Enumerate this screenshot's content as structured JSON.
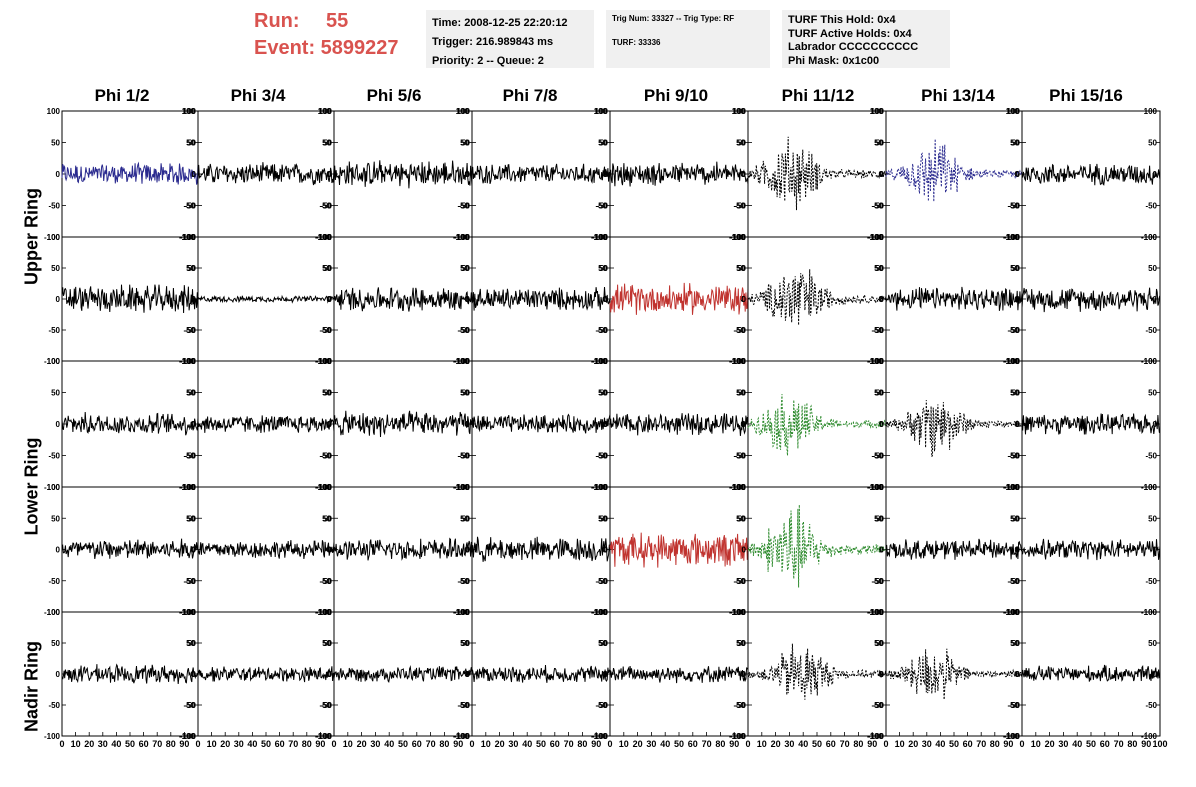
{
  "header": {
    "run_label": "Run:",
    "run_value": "55",
    "event_line": "Event: 5899227"
  },
  "info_time": {
    "time": "Time: 2008-12-25 22:20:12",
    "trigger": "Trigger: 216.989843 ms",
    "priority": "Priority: 2 -- Queue: 2"
  },
  "info_trig": {
    "trig": "Trig Num: 33327 -- Trig Type: RF",
    "turf": "TURF: 33336"
  },
  "info_turf": {
    "hold": "TURF This Hold: 0x4",
    "active": "TURF Active Holds: 0x4",
    "labrador": "Labrador CCCCCCCCCC",
    "phimask": "Phi Mask: 0x1c00"
  },
  "columns": [
    "Phi 1/2",
    "Phi 3/4",
    "Phi 5/6",
    "Phi 7/8",
    "Phi 9/10",
    "Phi 11/12",
    "Phi 13/14",
    "Phi 15/16"
  ],
  "row_groups": [
    "Upper Ring",
    "Lower Ring",
    "Nadir Ring"
  ],
  "colors": {
    "blue": "#2b2b8f",
    "red": "#c0332f",
    "green": "#2e8b2e",
    "black": "#000000"
  },
  "chart_data": {
    "type": "line",
    "xlim": [
      0,
      100
    ],
    "ylim": [
      -100,
      100
    ],
    "y_ticks": [
      100,
      50,
      0,
      -50,
      -100
    ],
    "y_tick_labels": [
      "100",
      "50",
      "0",
      "-50",
      "-100"
    ],
    "x_tick_labels": [
      "0",
      "10",
      "20",
      "30",
      "40",
      "50",
      "60",
      "70",
      "80",
      "90",
      "100"
    ],
    "panels": [
      [
        {
          "color": "blue",
          "dashed": false,
          "amp": 14,
          "envelope": "flat"
        },
        {
          "color": "black",
          "dashed": false,
          "amp": 14,
          "envelope": "flat"
        },
        {
          "color": "black",
          "dashed": false,
          "amp": 17,
          "envelope": "flat"
        },
        {
          "color": "black",
          "dashed": false,
          "amp": 13,
          "envelope": "flat"
        },
        {
          "color": "black",
          "dashed": false,
          "amp": 15,
          "envelope": "flat"
        },
        {
          "color": "black",
          "dashed": true,
          "amp": 45,
          "envelope": "burst"
        },
        {
          "color": "blue",
          "dashed": true,
          "amp": 40,
          "envelope": "burst"
        },
        {
          "color": "black",
          "dashed": false,
          "amp": 14,
          "envelope": "flat"
        }
      ],
      [
        {
          "color": "black",
          "dashed": false,
          "amp": 18,
          "envelope": "flat"
        },
        {
          "color": "black",
          "dashed": false,
          "amp": 4,
          "envelope": "flat"
        },
        {
          "color": "black",
          "dashed": false,
          "amp": 16,
          "envelope": "flat"
        },
        {
          "color": "black",
          "dashed": false,
          "amp": 15,
          "envelope": "flat"
        },
        {
          "color": "red",
          "dashed": false,
          "amp": 20,
          "envelope": "flat"
        },
        {
          "color": "black",
          "dashed": true,
          "amp": 48,
          "envelope": "burst"
        },
        {
          "color": "black",
          "dashed": false,
          "amp": 15,
          "envelope": "flat"
        },
        {
          "color": "black",
          "dashed": false,
          "amp": 16,
          "envelope": "flat"
        }
      ],
      [
        {
          "color": "black",
          "dashed": false,
          "amp": 14,
          "envelope": "flat"
        },
        {
          "color": "black",
          "dashed": false,
          "amp": 12,
          "envelope": "flat"
        },
        {
          "color": "black",
          "dashed": false,
          "amp": 16,
          "envelope": "flat"
        },
        {
          "color": "black",
          "dashed": false,
          "amp": 12,
          "envelope": "flat"
        },
        {
          "color": "black",
          "dashed": false,
          "amp": 14,
          "envelope": "flat"
        },
        {
          "color": "green",
          "dashed": true,
          "amp": 40,
          "envelope": "burst"
        },
        {
          "color": "black",
          "dashed": true,
          "amp": 40,
          "envelope": "burst"
        },
        {
          "color": "black",
          "dashed": false,
          "amp": 13,
          "envelope": "flat"
        }
      ],
      [
        {
          "color": "black",
          "dashed": false,
          "amp": 14,
          "envelope": "flat"
        },
        {
          "color": "black",
          "dashed": false,
          "amp": 12,
          "envelope": "flat"
        },
        {
          "color": "black",
          "dashed": false,
          "amp": 14,
          "envelope": "flat"
        },
        {
          "color": "black",
          "dashed": false,
          "amp": 16,
          "envelope": "flat"
        },
        {
          "color": "red",
          "dashed": false,
          "amp": 22,
          "envelope": "flat"
        },
        {
          "color": "green",
          "dashed": true,
          "amp": 55,
          "envelope": "burst"
        },
        {
          "color": "black",
          "dashed": false,
          "amp": 13,
          "envelope": "flat"
        },
        {
          "color": "black",
          "dashed": false,
          "amp": 13,
          "envelope": "flat"
        }
      ],
      [
        {
          "color": "black",
          "dashed": false,
          "amp": 12,
          "envelope": "flat"
        },
        {
          "color": "black",
          "dashed": false,
          "amp": 10,
          "envelope": "flat"
        },
        {
          "color": "black",
          "dashed": false,
          "amp": 10,
          "envelope": "flat"
        },
        {
          "color": "black",
          "dashed": false,
          "amp": 11,
          "envelope": "flat"
        },
        {
          "color": "black",
          "dashed": false,
          "amp": 11,
          "envelope": "flat"
        },
        {
          "color": "black",
          "dashed": true,
          "amp": 42,
          "envelope": "burst"
        },
        {
          "color": "black",
          "dashed": true,
          "amp": 38,
          "envelope": "burst"
        },
        {
          "color": "black",
          "dashed": false,
          "amp": 11,
          "envelope": "flat"
        }
      ]
    ]
  }
}
